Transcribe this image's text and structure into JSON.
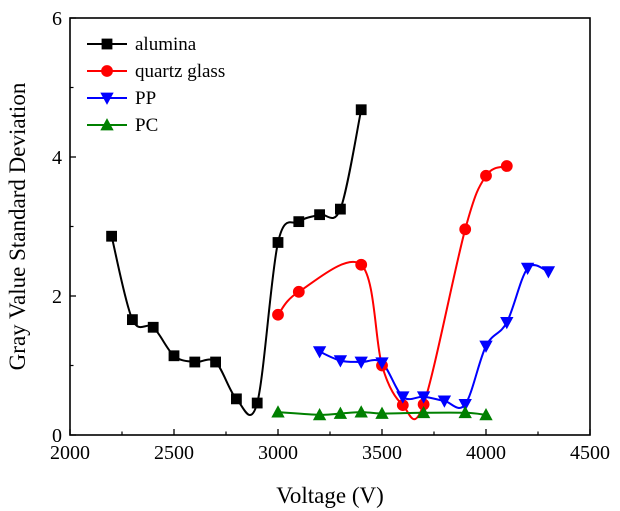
{
  "chart_data": {
    "type": "line",
    "title": "",
    "xlabel": "Voltage (V)",
    "ylabel": "Gray Value Standard Deviation",
    "xlim": [
      2000,
      4500
    ],
    "ylim": [
      0,
      6
    ],
    "xticks": [
      2000,
      2500,
      3000,
      3500,
      4000,
      4500
    ],
    "yticks": [
      0,
      2,
      4,
      6
    ],
    "grid": false,
    "legend_position": "top-left",
    "series": [
      {
        "name": "alumina",
        "color": "#000000",
        "marker": "square",
        "x": [
          2200,
          2300,
          2400,
          2500,
          2600,
          2700,
          2800,
          2900,
          3000,
          3100,
          3200,
          3300,
          3400
        ],
        "y": [
          2.86,
          1.66,
          1.55,
          1.14,
          1.05,
          1.05,
          0.52,
          0.46,
          2.77,
          3.07,
          3.17,
          3.25,
          4.68
        ]
      },
      {
        "name": "quartz glass",
        "color": "#ff0000",
        "marker": "circle",
        "x": [
          3000,
          3100,
          3400,
          3500,
          3600,
          3700,
          3900,
          4000,
          4100
        ],
        "y": [
          1.73,
          2.06,
          2.45,
          1.0,
          0.43,
          0.44,
          2.96,
          3.73,
          3.87
        ]
      },
      {
        "name": "PP",
        "color": "#0000ff",
        "marker": "triangle-down",
        "x": [
          3200,
          3300,
          3400,
          3500,
          3600,
          3700,
          3800,
          3900,
          4000,
          4100,
          4200,
          4300
        ],
        "y": [
          1.2,
          1.07,
          1.05,
          1.04,
          0.55,
          0.55,
          0.49,
          0.44,
          1.28,
          1.62,
          2.4,
          2.35
        ]
      },
      {
        "name": "PC",
        "color": "#008000",
        "marker": "triangle-up",
        "x": [
          3000,
          3200,
          3300,
          3400,
          3500,
          3700,
          3900,
          4000
        ],
        "y": [
          0.33,
          0.29,
          0.31,
          0.33,
          0.31,
          0.32,
          0.32,
          0.29
        ]
      }
    ]
  }
}
